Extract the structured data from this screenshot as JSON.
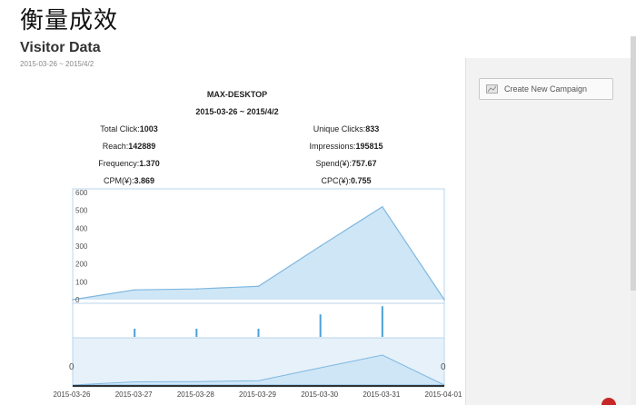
{
  "page": {
    "heading": "衡量成效",
    "title": "Visitor Data",
    "date_range": "2015-03-26 ~ 2015/4/2"
  },
  "panel": {
    "create_button": "Create New Campaign",
    "create_icon": "line-chart-icon"
  },
  "stats": {
    "name": "MAX-DESKTOP",
    "range": "2015-03-26 ~ 2015/4/2",
    "total_click_label": "Total Click:",
    "total_click_value": "1003",
    "unique_clicks_label": "Unique Clicks:",
    "unique_clicks_value": "833",
    "reach_label": "Reach:",
    "reach_value": "142889",
    "impressions_label": "Impressions:",
    "impressions_value": "195815",
    "frequency_label": "Frequency:",
    "frequency_value": "1.370",
    "spend_label": "Spend(¥):",
    "spend_value": "757.67",
    "cpm_label": "CPM(¥):",
    "cpm_value": "3.869",
    "cpc_label": "CPC(¥):",
    "cpc_value": "0.755"
  },
  "colors": {
    "area_fill": "#cfe6f7",
    "area_stroke": "#7fb8e0",
    "bar": "#4aa0d8",
    "axis_border": "#b9d6ec"
  },
  "chart_data": {
    "type": "area",
    "x": [
      "2015-03-26",
      "2015-03-27",
      "2015-03-28",
      "2015-03-29",
      "2015-03-30",
      "2015-03-31",
      "2015-04-01"
    ],
    "x_tick_labels": [
      "2015-03-26",
      "2015-03-27",
      "2015-03-28",
      "2015-03-29",
      "2015-03-30",
      "2015-03-31",
      "2015-04-01"
    ],
    "series": [
      {
        "values": [
          0,
          55,
          60,
          75,
          300,
          520,
          0
        ]
      }
    ],
    "bars": [
      {
        "x": "2015-03-27",
        "value": 20
      },
      {
        "x": "2015-03-28",
        "value": 20
      },
      {
        "x": "2015-03-29",
        "value": 20
      },
      {
        "x": "2015-03-30",
        "value": 55
      },
      {
        "x": "2015-03-31",
        "value": 75
      }
    ],
    "y_ticks": [
      0,
      100,
      200,
      300,
      400,
      500,
      600
    ],
    "ylim": [
      0,
      600
    ],
    "navigator_labels": [
      "0",
      "0"
    ],
    "grid": false,
    "legend": "none"
  }
}
